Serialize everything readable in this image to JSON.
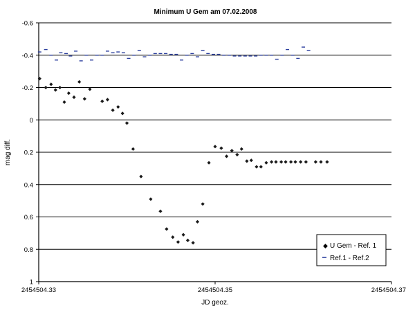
{
  "chart_data": {
    "type": "scatter",
    "title": "Minimum U Gem am 07.02.2008",
    "xlabel": "JD geoz.",
    "ylabel": "mag diff.",
    "xlim": [
      2454504.33,
      2454504.37
    ],
    "ylim": [
      1,
      -0.6
    ],
    "y_inverted": true,
    "grid": "horizontal",
    "xticks": [
      {
        "value": 2454504.33,
        "label": "2454504.33"
      },
      {
        "value": 2454504.35,
        "label": "2454504.35"
      },
      {
        "value": 2454504.37,
        "label": "2454504.37"
      }
    ],
    "yticks": [
      {
        "value": -0.6,
        "label": "-0.6"
      },
      {
        "value": -0.4,
        "label": "-0.4"
      },
      {
        "value": -0.2,
        "label": "-0.2"
      },
      {
        "value": 0,
        "label": "0"
      },
      {
        "value": 0.2,
        "label": "0.2"
      },
      {
        "value": 0.4,
        "label": "0.4"
      },
      {
        "value": 0.6,
        "label": "0.6"
      },
      {
        "value": 0.8,
        "label": "0.8"
      },
      {
        "value": 1,
        "label": "1"
      }
    ],
    "legend_position": "bottom-right",
    "series": [
      {
        "name": "U Gem - Ref. 1",
        "marker": "diamond",
        "color": "#1a1a1a",
        "x": [
          2454504.3301,
          2454504.3308,
          2454504.3314,
          2454504.3319,
          2454504.3324,
          2454504.3329,
          2454504.3334,
          2454504.334,
          2454504.3346,
          2454504.3352,
          2454504.3358,
          2454504.3372,
          2454504.3378,
          2454504.3384,
          2454504.339,
          2454504.3395,
          2454504.34,
          2454504.3407,
          2454504.3416,
          2454504.3427,
          2454504.3438,
          2454504.3445,
          2454504.3452,
          2454504.3458,
          2454504.3464,
          2454504.3469,
          2454504.3475,
          2454504.348,
          2454504.3486,
          2454504.3493,
          2454504.35,
          2454504.3507,
          2454504.3513,
          2454504.3519,
          2454504.3525,
          2454504.353,
          2454504.3536,
          2454504.3541,
          2454504.3547,
          2454504.3552,
          2454504.3558,
          2454504.3564,
          2454504.3569,
          2454504.3575,
          2454504.358,
          2454504.3586,
          2454504.3591,
          2454504.3597,
          2454504.3603,
          2454504.3614,
          2454504.362,
          2454504.3627
        ],
        "y": [
          -0.255,
          -0.2,
          -0.22,
          -0.185,
          -0.2,
          -0.11,
          -0.165,
          -0.14,
          -0.235,
          -0.13,
          -0.19,
          -0.115,
          -0.125,
          -0.06,
          -0.08,
          -0.04,
          0.02,
          0.18,
          0.35,
          0.49,
          0.565,
          0.675,
          0.725,
          0.755,
          0.71,
          0.745,
          0.76,
          0.63,
          0.52,
          0.265,
          0.165,
          0.175,
          0.225,
          0.19,
          0.215,
          0.18,
          0.255,
          0.25,
          0.29,
          0.29,
          0.265,
          0.26,
          0.26,
          0.26,
          0.26,
          0.26,
          0.26,
          0.26,
          0.26,
          0.26,
          0.26,
          0.26
        ]
      },
      {
        "name": "Ref.1 - Ref.2",
        "marker": "dash",
        "color": "#2b3f9e",
        "x": [
          2454504.3301,
          2454504.3308,
          2454504.3314,
          2454504.332,
          2454504.3325,
          2454504.3331,
          2454504.3336,
          2454504.3342,
          2454504.3348,
          2454504.3354,
          2454504.336,
          2454504.3366,
          2454504.3372,
          2454504.3378,
          2454504.3384,
          2454504.339,
          2454504.3396,
          2454504.3402,
          2454504.3408,
          2454504.3414,
          2454504.342,
          2454504.3426,
          2454504.3432,
          2454504.3438,
          2454504.3444,
          2454504.345,
          2454504.3456,
          2454504.3462,
          2454504.3468,
          2454504.3474,
          2454504.348,
          2454504.3486,
          2454504.3492,
          2454504.3498,
          2454504.3504,
          2454504.351,
          2454504.3516,
          2454504.3522,
          2454504.3528,
          2454504.3534,
          2454504.354,
          2454504.3546,
          2454504.3552,
          2454504.3558,
          2454504.3564,
          2454504.357,
          2454504.3576,
          2454504.3582,
          2454504.3588,
          2454504.3594,
          2454504.36,
          2454504.3606
        ],
        "y": [
          -0.42,
          -0.435,
          -0.4,
          -0.37,
          -0.415,
          -0.41,
          -0.395,
          -0.425,
          -0.365,
          -0.4,
          -0.37,
          -0.4,
          -0.4,
          -0.425,
          -0.415,
          -0.42,
          -0.415,
          -0.38,
          -0.4,
          -0.43,
          -0.39,
          -0.4,
          -0.41,
          -0.41,
          -0.41,
          -0.405,
          -0.405,
          -0.37,
          -0.4,
          -0.41,
          -0.39,
          -0.43,
          -0.41,
          -0.405,
          -0.405,
          -0.4,
          -0.4,
          -0.395,
          -0.395,
          -0.395,
          -0.395,
          -0.395,
          -0.4,
          -0.4,
          -0.4,
          -0.375,
          -0.4,
          -0.435,
          -0.4,
          -0.38,
          -0.45,
          -0.43
        ]
      }
    ]
  }
}
